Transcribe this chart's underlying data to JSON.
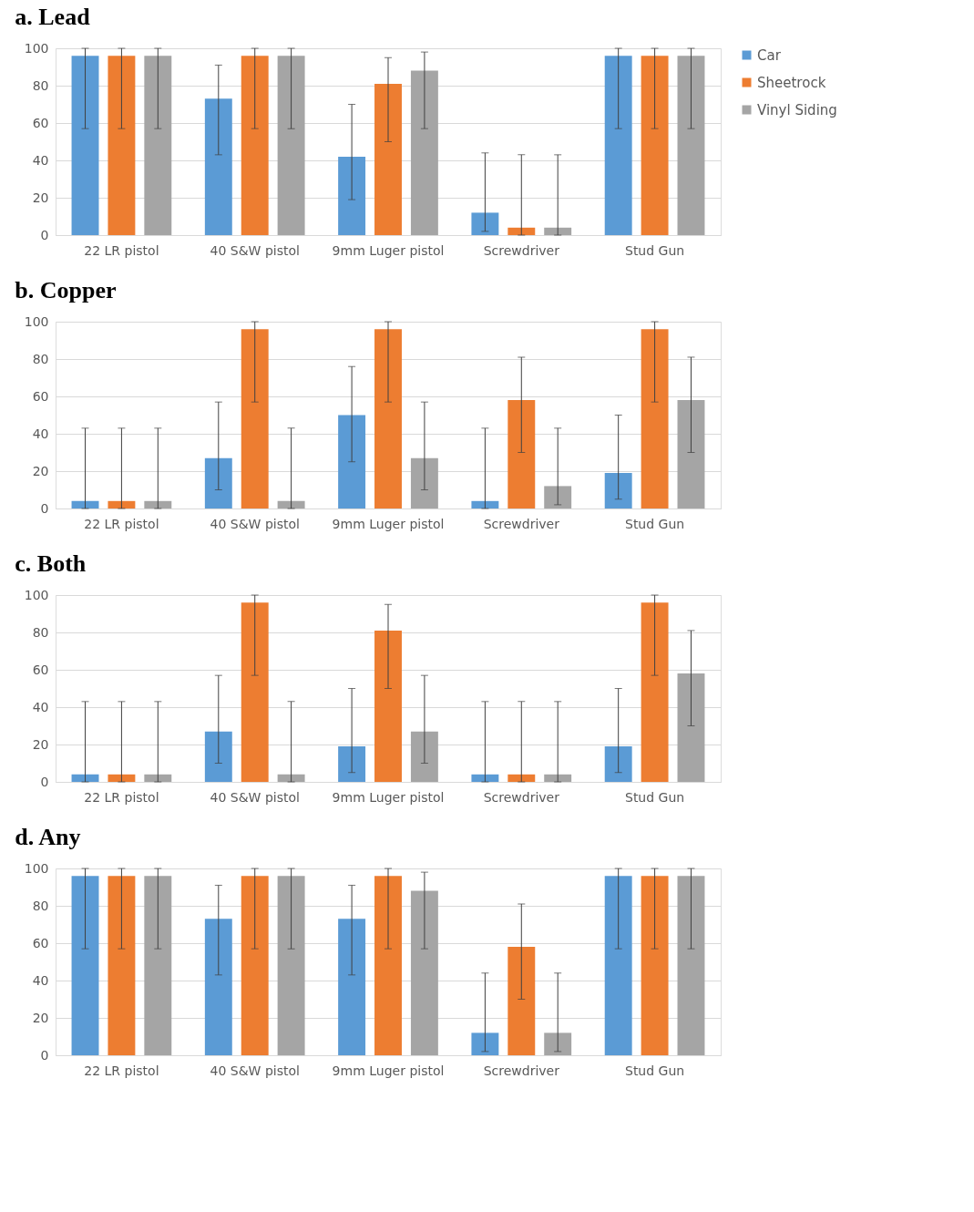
{
  "chart_data": [
    {
      "type": "bar",
      "title": "a.  Lead",
      "categories": [
        "22 LR pistol",
        "40 S&W pistol",
        "9mm Luger pistol",
        "Screwdriver",
        "Stud Gun"
      ],
      "ylim": [
        0,
        100
      ],
      "yticks": [
        0,
        20,
        40,
        60,
        80,
        100
      ],
      "grid": "y",
      "legend": "right",
      "series": [
        {
          "name": "Car",
          "color": "#5b9bd5",
          "values": [
            96,
            73,
            42,
            12,
            96
          ],
          "errors": [
            [
              57,
              100
            ],
            [
              43,
              91
            ],
            [
              19,
              70
            ],
            [
              2,
              44
            ],
            [
              57,
              100
            ]
          ]
        },
        {
          "name": "Sheetrock",
          "color": "#ed7d31",
          "values": [
            96,
            96,
            81,
            4,
            96
          ],
          "errors": [
            [
              57,
              100
            ],
            [
              57,
              100
            ],
            [
              50,
              95
            ],
            [
              0,
              43
            ],
            [
              57,
              100
            ]
          ]
        },
        {
          "name": "Vinyl Siding",
          "color": "#a5a5a5",
          "values": [
            96,
            96,
            88,
            4,
            96
          ],
          "errors": [
            [
              57,
              100
            ],
            [
              57,
              100
            ],
            [
              57,
              98
            ],
            [
              0,
              43
            ],
            [
              57,
              100
            ]
          ]
        }
      ]
    },
    {
      "type": "bar",
      "title": "b.  Copper",
      "categories": [
        "22 LR pistol",
        "40 S&W pistol",
        "9mm Luger pistol",
        "Screwdriver",
        "Stud Gun"
      ],
      "ylim": [
        0,
        100
      ],
      "yticks": [
        0,
        20,
        40,
        60,
        80,
        100
      ],
      "grid": "y",
      "legend": "right",
      "series": [
        {
          "name": "Car",
          "color": "#5b9bd5",
          "values": [
            4,
            27,
            50,
            4,
            19
          ],
          "errors": [
            [
              0,
              43
            ],
            [
              10,
              57
            ],
            [
              25,
              76
            ],
            [
              0,
              43
            ],
            [
              5,
              50
            ]
          ]
        },
        {
          "name": "Sheetrock",
          "color": "#ed7d31",
          "values": [
            4,
            96,
            96,
            58,
            96
          ],
          "errors": [
            [
              0,
              43
            ],
            [
              57,
              100
            ],
            [
              57,
              100
            ],
            [
              30,
              81
            ],
            [
              57,
              100
            ]
          ]
        },
        {
          "name": "Vinyl Siding",
          "color": "#a5a5a5",
          "values": [
            4,
            4,
            27,
            12,
            58
          ],
          "errors": [
            [
              0,
              43
            ],
            [
              0,
              43
            ],
            [
              10,
              57
            ],
            [
              2,
              43
            ],
            [
              30,
              81
            ]
          ]
        }
      ]
    },
    {
      "type": "bar",
      "title": "c.  Both",
      "categories": [
        "22 LR pistol",
        "40 S&W pistol",
        "9mm Luger pistol",
        "Screwdriver",
        "Stud Gun"
      ],
      "ylim": [
        0,
        100
      ],
      "yticks": [
        0,
        20,
        40,
        60,
        80,
        100
      ],
      "grid": "y",
      "legend": "right",
      "series": [
        {
          "name": "Car",
          "color": "#5b9bd5",
          "values": [
            4,
            27,
            19,
            4,
            19
          ],
          "errors": [
            [
              0,
              43
            ],
            [
              10,
              57
            ],
            [
              5,
              50
            ],
            [
              0,
              43
            ],
            [
              5,
              50
            ]
          ]
        },
        {
          "name": "Sheetrock",
          "color": "#ed7d31",
          "values": [
            4,
            96,
            81,
            4,
            96
          ],
          "errors": [
            [
              0,
              43
            ],
            [
              57,
              100
            ],
            [
              50,
              95
            ],
            [
              0,
              43
            ],
            [
              57,
              100
            ]
          ]
        },
        {
          "name": "Vinyl Siding",
          "color": "#a5a5a5",
          "values": [
            4,
            4,
            27,
            4,
            58
          ],
          "errors": [
            [
              0,
              43
            ],
            [
              0,
              43
            ],
            [
              10,
              57
            ],
            [
              0,
              43
            ],
            [
              30,
              81
            ]
          ]
        }
      ]
    },
    {
      "type": "bar",
      "title": "d.  Any",
      "categories": [
        "22 LR pistol",
        "40 S&W pistol",
        "9mm Luger pistol",
        "Screwdriver",
        "Stud Gun"
      ],
      "ylim": [
        0,
        100
      ],
      "yticks": [
        0,
        20,
        40,
        60,
        80,
        100
      ],
      "grid": "y",
      "legend": "right",
      "series": [
        {
          "name": "Car",
          "color": "#5b9bd5",
          "values": [
            96,
            73,
            73,
            12,
            96
          ],
          "errors": [
            [
              57,
              100
            ],
            [
              43,
              91
            ],
            [
              43,
              91
            ],
            [
              2,
              44
            ],
            [
              57,
              100
            ]
          ]
        },
        {
          "name": "Sheetrock",
          "color": "#ed7d31",
          "values": [
            96,
            96,
            96,
            58,
            96
          ],
          "errors": [
            [
              57,
              100
            ],
            [
              57,
              100
            ],
            [
              57,
              100
            ],
            [
              30,
              81
            ],
            [
              57,
              100
            ]
          ]
        },
        {
          "name": "Vinyl Siding",
          "color": "#a5a5a5",
          "values": [
            96,
            96,
            88,
            12,
            96
          ],
          "errors": [
            [
              57,
              100
            ],
            [
              57,
              100
            ],
            [
              57,
              98
            ],
            [
              2,
              44
            ],
            [
              57,
              100
            ]
          ]
        }
      ]
    }
  ]
}
